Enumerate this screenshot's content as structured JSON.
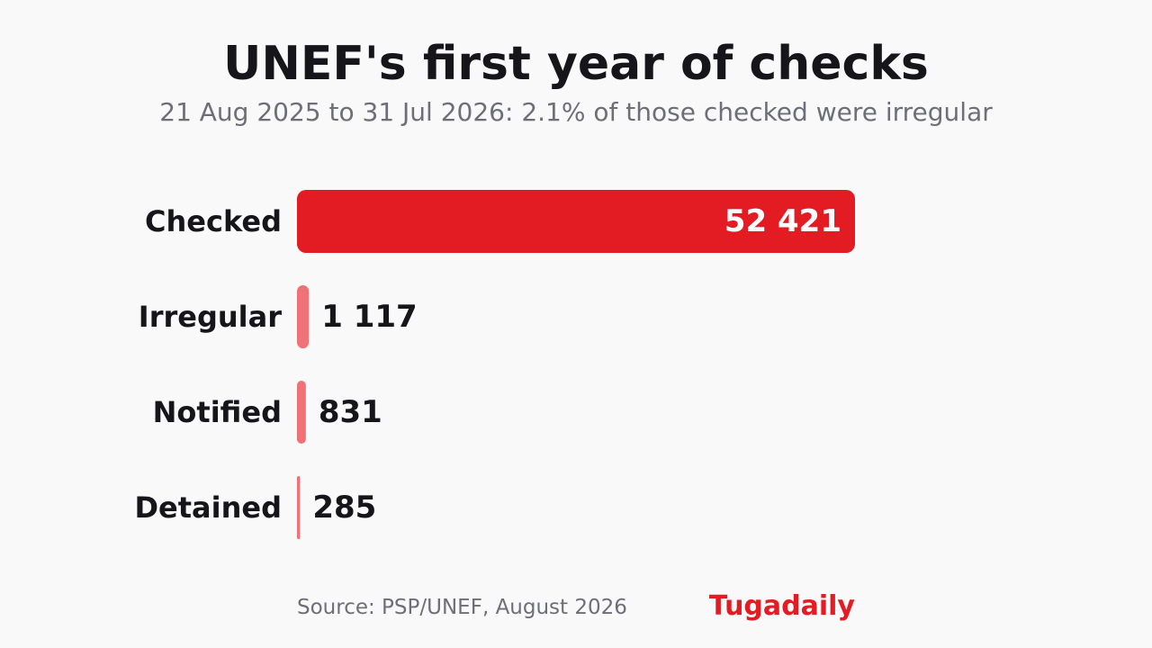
{
  "header": {
    "title": "UNEF's first year of checks",
    "subtitle": "21 Aug 2025 to 31 Jul 2026: 2.1% of those checked were irregular"
  },
  "footer": {
    "source": "Source: PSP/UNEF, August 2026",
    "brand": "Tugadaily"
  },
  "colors": {
    "primary_bar": "#e31b23",
    "secondary_bar": "#ee7277",
    "inside_label": "#ffffff",
    "outside_label": "#15151a"
  },
  "chart_data": {
    "type": "bar",
    "orientation": "horizontal",
    "title": "UNEF's first year of checks",
    "subtitle": "21 Aug 2025 to 31 Jul 2026: 2.1% of those checked were irregular",
    "categories": [
      "Checked",
      "Irregular",
      "Notified",
      "Detained"
    ],
    "values": [
      52421,
      1117,
      831,
      285
    ],
    "value_labels": [
      "52 421",
      "1 117",
      "831",
      "285"
    ],
    "xlabel": "",
    "ylabel": "",
    "grid": false,
    "legend": "none"
  }
}
